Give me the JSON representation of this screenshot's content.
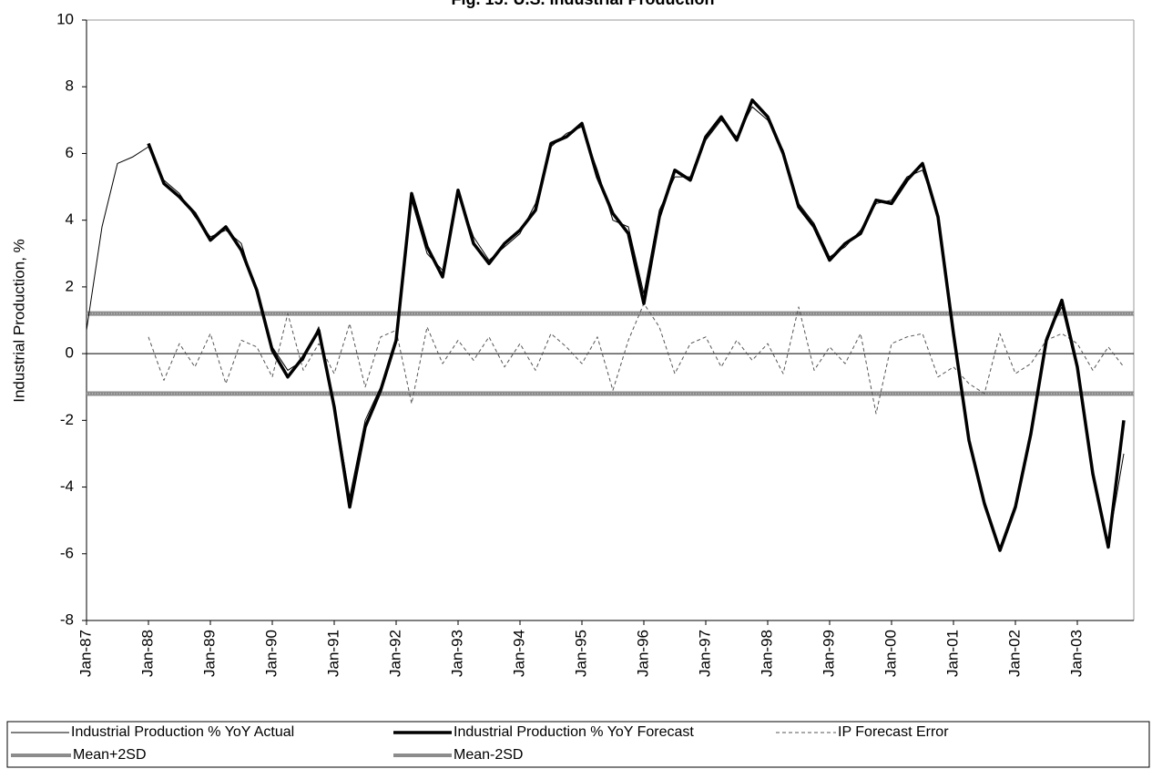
{
  "chart_data": {
    "type": "line",
    "title": "Fig. 15: U.S. Industrial Production",
    "y_label": "Industrial Production, %",
    "categories": [
      "Jan-87",
      null,
      null,
      null,
      "Jan-88",
      null,
      null,
      null,
      "Jan-89",
      null,
      null,
      null,
      "Jan-90",
      null,
      null,
      null,
      "Jan-91",
      null,
      null,
      null,
      "Jan-92",
      null,
      null,
      null,
      "Jan-93",
      null,
      null,
      null,
      "Jan-94",
      null,
      null,
      null,
      "Jan-95",
      null,
      null,
      null,
      "Jan-96",
      null,
      null,
      null,
      "Jan-97",
      null,
      null,
      null,
      "Jan-98",
      null,
      null,
      null,
      "Jan-99",
      null,
      null,
      null,
      "Jan-00",
      null,
      null,
      null,
      "Jan-01",
      null,
      null,
      null,
      "Jan-02",
      null,
      null,
      null,
      "Jan-03",
      null,
      null,
      null
    ],
    "ylim": [
      -8,
      10
    ],
    "yticks": [
      -8,
      -6,
      -4,
      -2,
      0,
      2,
      4,
      6,
      8,
      10
    ],
    "series": [
      {
        "name": "Industrial Production % YoY Actual",
        "color": "#000000",
        "width": 1,
        "dash": "none",
        "values": [
          0.7,
          3.8,
          5.7,
          5.9,
          6.2,
          5.2,
          4.8,
          4.1,
          3.5,
          3.7,
          3.3,
          1.8,
          0.2,
          -0.5,
          -0.2,
          0.8,
          -1.5,
          -4.3,
          -2.0,
          -1.0,
          0.5,
          4.6,
          3.0,
          2.5,
          4.8,
          3.5,
          2.8,
          3.2,
          3.6,
          4.5,
          6.2,
          6.6,
          6.8,
          5.5,
          4.0,
          3.8,
          1.8,
          4.3,
          5.3,
          5.3,
          6.4,
          7.0,
          6.5,
          7.4,
          7.0,
          6.1,
          4.5,
          3.9,
          2.9,
          3.2,
          3.7,
          4.5,
          4.6,
          5.3,
          5.5,
          4.2,
          0.5,
          -2.5,
          -4.6,
          -5.8,
          -4.5,
          -2.5,
          0.5,
          1.4,
          -0.5,
          -3.5,
          -5.7,
          -3.0
        ]
      },
      {
        "name": "Industrial Production % YoY Forecast",
        "color": "#000000",
        "width": 3.5,
        "dash": "none",
        "values": [
          null,
          null,
          null,
          null,
          6.3,
          5.1,
          4.7,
          4.2,
          3.4,
          3.8,
          3.1,
          1.9,
          0.1,
          -0.7,
          -0.1,
          0.7,
          -1.6,
          -4.6,
          -2.2,
          -1.1,
          0.4,
          4.8,
          3.2,
          2.3,
          4.9,
          3.3,
          2.7,
          3.3,
          3.7,
          4.3,
          6.3,
          6.5,
          6.9,
          5.3,
          4.2,
          3.6,
          1.5,
          4.1,
          5.5,
          5.2,
          6.5,
          7.1,
          6.4,
          7.6,
          7.1,
          6.0,
          4.4,
          3.8,
          2.8,
          3.3,
          3.6,
          4.6,
          4.5,
          5.2,
          5.7,
          4.1,
          0.6,
          -2.6,
          -4.5,
          -5.9,
          -4.6,
          -2.4,
          0.4,
          1.6,
          -0.4,
          -3.6,
          -5.8,
          -2.0
        ]
      },
      {
        "name": "IP Forecast Error",
        "color": "#555555",
        "width": 1,
        "dash": "4 3",
        "values": [
          null,
          null,
          null,
          null,
          0.5,
          -0.8,
          0.3,
          -0.4,
          0.6,
          -0.9,
          0.4,
          0.2,
          -0.7,
          1.2,
          -0.5,
          0.3,
          -0.6,
          0.9,
          -1.0,
          0.5,
          0.7,
          -1.5,
          0.8,
          -0.3,
          0.4,
          -0.2,
          0.5,
          -0.4,
          0.3,
          -0.5,
          0.6,
          0.2,
          -0.3,
          0.5,
          -1.1,
          0.4,
          1.5,
          0.8,
          -0.6,
          0.3,
          0.5,
          -0.4,
          0.4,
          -0.2,
          0.3,
          -0.6,
          1.4,
          -0.5,
          0.2,
          -0.3,
          0.6,
          -1.8,
          0.3,
          0.5,
          0.6,
          -0.7,
          -0.4,
          -0.9,
          -1.2,
          0.6,
          -0.6,
          -0.3,
          0.4,
          0.6,
          0.3,
          -0.5,
          0.2,
          -0.4
        ]
      }
    ],
    "reference_lines": [
      {
        "name": "Mean+2SD",
        "value": 1.2,
        "color": "#8c8c8c"
      },
      {
        "name": "Mean-2SD",
        "value": -1.2,
        "color": "#8c8c8c"
      }
    ]
  }
}
